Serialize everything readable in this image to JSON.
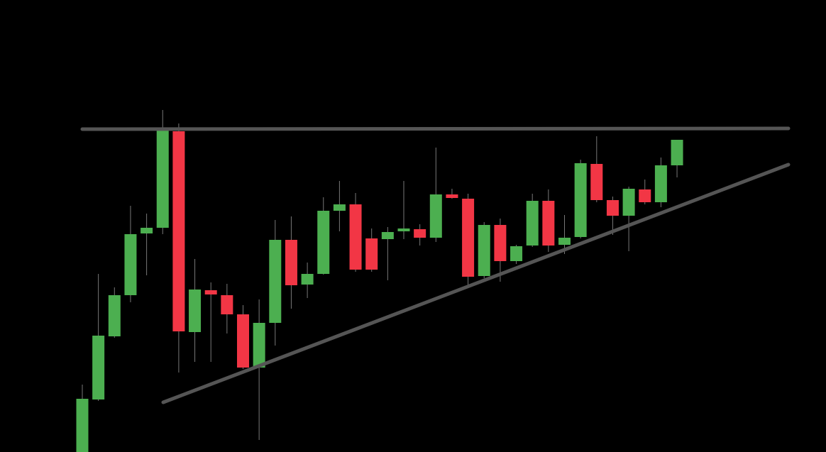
{
  "chart_data": {
    "type": "candlestick",
    "up_color": "#4caf50",
    "down_color": "#f23645",
    "ylim": [
      0,
      637
    ],
    "open": [
      0,
      74,
      163,
      221,
      308,
      316,
      452,
      169,
      228,
      221,
      194,
      119,
      182,
      299,
      236,
      251,
      340,
      349,
      301,
      300,
      311,
      314,
      302,
      363,
      357,
      248,
      320,
      269,
      291,
      354,
      292,
      303,
      406,
      355,
      333,
      370,
      352,
      404
    ],
    "high": [
      95,
      251,
      232,
      347,
      336,
      482,
      463,
      272,
      239,
      237,
      207,
      215,
      327,
      332,
      267,
      359,
      382,
      365,
      315,
      317,
      382,
      321,
      429,
      371,
      364,
      324,
      329,
      292,
      364,
      370,
      334,
      412,
      445,
      360,
      374,
      384,
      415,
      440
    ],
    "low": [
      0,
      72,
      161,
      211,
      249,
      307,
      112,
      127,
      127,
      167,
      117,
      17,
      150,
      202,
      217,
      250,
      311,
      254,
      254,
      242,
      300,
      291,
      296,
      357,
      235,
      245,
      240,
      265,
      289,
      282,
      279,
      301,
      352,
      306,
      283,
      349,
      345,
      387
    ],
    "close": [
      75,
      164,
      221,
      307,
      316,
      453,
      170,
      229,
      222,
      194,
      119,
      182,
      299,
      235,
      251,
      340,
      349,
      257,
      257,
      310,
      315,
      302,
      363,
      358,
      247,
      320,
      269,
      290,
      354,
      291,
      302,
      407,
      355,
      333,
      371,
      352,
      404,
      440
    ]
  }
}
